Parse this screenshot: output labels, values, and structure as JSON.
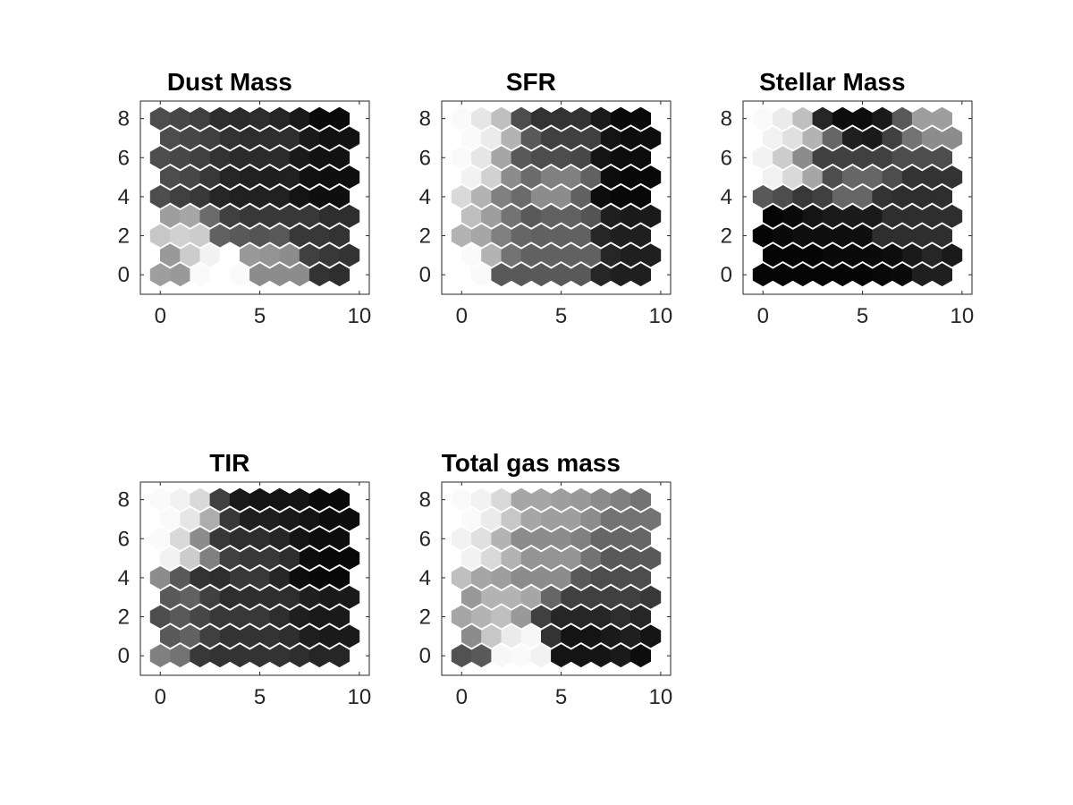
{
  "chart_data": [
    {
      "type": "heatmap",
      "title": "Dust Mass",
      "xlabel": "",
      "ylabel": "",
      "xlim": [
        -1,
        10.5
      ],
      "ylim": [
        -1,
        8.9
      ],
      "xticks": [
        0,
        5,
        10
      ],
      "yticks": [
        0,
        2,
        4,
        6,
        8
      ],
      "grid": false,
      "layout": "hexagonal",
      "x": [
        0,
        1,
        2,
        3,
        4,
        5,
        6,
        7,
        8,
        9
      ],
      "y": [
        0,
        1,
        2,
        3,
        4,
        5,
        6,
        7,
        8
      ],
      "values": [
        [
          0.62,
          0.6,
          0.98,
          1.0,
          0.98,
          0.55,
          0.55,
          0.55,
          0.2,
          0.18
        ],
        [
          0.6,
          0.8,
          0.95,
          1.0,
          0.6,
          0.58,
          0.55,
          0.25,
          0.22,
          0.2
        ],
        [
          0.78,
          0.82,
          0.8,
          0.38,
          0.35,
          0.33,
          0.35,
          0.22,
          0.22,
          0.2
        ],
        [
          0.62,
          0.65,
          0.42,
          0.25,
          0.22,
          0.22,
          0.22,
          0.22,
          0.18,
          0.18
        ],
        [
          0.3,
          0.25,
          0.22,
          0.15,
          0.13,
          0.13,
          0.13,
          0.08,
          0.06,
          0.06
        ],
        [
          0.3,
          0.28,
          0.22,
          0.15,
          0.13,
          0.12,
          0.13,
          0.07,
          0.06,
          0.06
        ],
        [
          0.3,
          0.28,
          0.25,
          0.2,
          0.17,
          0.17,
          0.17,
          0.1,
          0.07,
          0.07
        ],
        [
          0.3,
          0.28,
          0.25,
          0.2,
          0.18,
          0.18,
          0.18,
          0.1,
          0.07,
          0.07
        ],
        [
          0.3,
          0.28,
          0.25,
          0.18,
          0.17,
          0.18,
          0.15,
          0.1,
          0.04,
          0.04
        ]
      ]
    },
    {
      "type": "heatmap",
      "title": "SFR",
      "xlabel": "",
      "ylabel": "",
      "xlim": [
        -1,
        10.5
      ],
      "ylim": [
        -1,
        8.9
      ],
      "xticks": [
        0,
        5,
        10
      ],
      "yticks": [
        0,
        2,
        4,
        6,
        8
      ],
      "grid": false,
      "layout": "hexagonal",
      "x": [
        0,
        1,
        2,
        3,
        4,
        5,
        6,
        7,
        8,
        9
      ],
      "y": [
        0,
        1,
        2,
        3,
        4,
        5,
        6,
        7,
        8
      ],
      "values": [
        [
          1.0,
          0.98,
          0.35,
          0.35,
          0.35,
          0.35,
          0.35,
          0.15,
          0.12,
          0.12
        ],
        [
          0.98,
          0.7,
          0.45,
          0.38,
          0.38,
          0.38,
          0.38,
          0.15,
          0.12,
          0.12
        ],
        [
          0.7,
          0.65,
          0.5,
          0.4,
          0.38,
          0.38,
          0.38,
          0.15,
          0.12,
          0.12
        ],
        [
          0.75,
          0.62,
          0.45,
          0.35,
          0.38,
          0.38,
          0.33,
          0.12,
          0.1,
          0.1
        ],
        [
          0.85,
          0.7,
          0.5,
          0.42,
          0.55,
          0.55,
          0.38,
          0.05,
          0.03,
          0.03
        ],
        [
          0.95,
          0.82,
          0.55,
          0.42,
          0.5,
          0.5,
          0.38,
          0.05,
          0.03,
          0.03
        ],
        [
          0.98,
          0.9,
          0.65,
          0.35,
          0.3,
          0.3,
          0.28,
          0.08,
          0.05,
          0.05
        ],
        [
          0.98,
          0.92,
          0.7,
          0.35,
          0.25,
          0.25,
          0.25,
          0.08,
          0.05,
          0.05
        ],
        [
          0.98,
          0.9,
          0.75,
          0.3,
          0.2,
          0.2,
          0.2,
          0.1,
          0.04,
          0.04
        ]
      ]
    },
    {
      "type": "heatmap",
      "title": "Stellar Mass",
      "xlabel": "",
      "ylabel": "",
      "xlim": [
        -1,
        10.5
      ],
      "ylim": [
        -1,
        8.9
      ],
      "xticks": [
        0,
        5,
        10
      ],
      "yticks": [
        0,
        2,
        4,
        6,
        8
      ],
      "grid": false,
      "layout": "hexagonal",
      "x": [
        0,
        1,
        2,
        3,
        4,
        5,
        6,
        7,
        8,
        9
      ],
      "y": [
        0,
        1,
        2,
        3,
        4,
        5,
        6,
        7,
        8
      ],
      "values": [
        [
          0.02,
          0.02,
          0.02,
          0.02,
          0.02,
          0.02,
          0.03,
          0.04,
          0.12,
          0.12
        ],
        [
          0.02,
          0.02,
          0.02,
          0.04,
          0.04,
          0.04,
          0.05,
          0.1,
          0.15,
          0.1
        ],
        [
          0.02,
          0.04,
          0.06,
          0.06,
          0.06,
          0.06,
          0.18,
          0.18,
          0.18,
          0.18
        ],
        [
          0.02,
          0.04,
          0.08,
          0.1,
          0.1,
          0.1,
          0.18,
          0.18,
          0.18,
          0.18
        ],
        [
          0.35,
          0.3,
          0.22,
          0.25,
          0.4,
          0.4,
          0.2,
          0.18,
          0.18,
          0.18
        ],
        [
          0.95,
          0.85,
          0.65,
          0.3,
          0.4,
          0.4,
          0.3,
          0.2,
          0.2,
          0.2
        ],
        [
          0.95,
          0.8,
          0.55,
          0.25,
          0.25,
          0.25,
          0.25,
          0.3,
          0.3,
          0.3
        ],
        [
          0.95,
          0.88,
          0.7,
          0.4,
          0.12,
          0.1,
          0.25,
          0.45,
          0.55,
          0.55
        ],
        [
          0.98,
          0.92,
          0.75,
          0.15,
          0.05,
          0.05,
          0.1,
          0.35,
          0.62,
          0.62
        ]
      ]
    },
    {
      "type": "heatmap",
      "title": "TIR",
      "xlabel": "",
      "ylabel": "",
      "xlim": [
        -1,
        10.5
      ],
      "ylim": [
        -1,
        8.9
      ],
      "xticks": [
        0,
        5,
        10
      ],
      "yticks": [
        0,
        2,
        4,
        6,
        8
      ],
      "grid": false,
      "layout": "hexagonal",
      "x": [
        0,
        1,
        2,
        3,
        4,
        5,
        6,
        7,
        8,
        9
      ],
      "y": [
        0,
        1,
        2,
        3,
        4,
        5,
        6,
        7,
        8
      ],
      "values": [
        [
          0.5,
          0.45,
          0.22,
          0.2,
          0.2,
          0.2,
          0.2,
          0.18,
          0.15,
          0.15
        ],
        [
          0.35,
          0.38,
          0.25,
          0.2,
          0.2,
          0.2,
          0.18,
          0.12,
          0.1,
          0.1
        ],
        [
          0.3,
          0.35,
          0.28,
          0.22,
          0.22,
          0.22,
          0.18,
          0.12,
          0.1,
          0.1
        ],
        [
          0.35,
          0.38,
          0.25,
          0.18,
          0.18,
          0.18,
          0.18,
          0.12,
          0.1,
          0.1
        ],
        [
          0.55,
          0.35,
          0.2,
          0.18,
          0.22,
          0.22,
          0.15,
          0.05,
          0.03,
          0.03
        ],
        [
          0.95,
          0.8,
          0.5,
          0.25,
          0.22,
          0.22,
          0.18,
          0.05,
          0.03,
          0.03
        ],
        [
          0.98,
          0.85,
          0.55,
          0.22,
          0.18,
          0.18,
          0.15,
          0.08,
          0.05,
          0.05
        ],
        [
          0.98,
          0.9,
          0.68,
          0.22,
          0.12,
          0.12,
          0.1,
          0.08,
          0.05,
          0.05
        ],
        [
          0.98,
          0.95,
          0.85,
          0.25,
          0.1,
          0.08,
          0.08,
          0.08,
          0.04,
          0.04
        ]
      ]
    },
    {
      "type": "heatmap",
      "title": "Total gas mass",
      "xlabel": "",
      "ylabel": "",
      "xlim": [
        -1,
        10.5
      ],
      "ylim": [
        -1,
        8.9
      ],
      "xticks": [
        0,
        5,
        10
      ],
      "yticks": [
        0,
        2,
        4,
        6,
        8
      ],
      "grid": false,
      "layout": "hexagonal",
      "x": [
        0,
        1,
        2,
        3,
        4,
        5,
        6,
        7,
        8,
        9
      ],
      "y": [
        0,
        1,
        2,
        3,
        4,
        5,
        6,
        7,
        8
      ],
      "values": [
        [
          0.32,
          0.35,
          0.97,
          0.98,
          0.95,
          0.08,
          0.08,
          0.08,
          0.1,
          0.05
        ],
        [
          0.55,
          0.78,
          0.92,
          0.97,
          0.2,
          0.08,
          0.08,
          0.1,
          0.12,
          0.08
        ],
        [
          0.65,
          0.7,
          0.75,
          0.6,
          0.25,
          0.15,
          0.15,
          0.15,
          0.18,
          0.15
        ],
        [
          0.6,
          0.7,
          0.7,
          0.65,
          0.4,
          0.25,
          0.25,
          0.25,
          0.25,
          0.22
        ],
        [
          0.75,
          0.65,
          0.62,
          0.55,
          0.55,
          0.55,
          0.35,
          0.3,
          0.3,
          0.3
        ],
        [
          0.95,
          0.85,
          0.7,
          0.58,
          0.58,
          0.58,
          0.45,
          0.35,
          0.35,
          0.35
        ],
        [
          0.95,
          0.88,
          0.7,
          0.55,
          0.55,
          0.55,
          0.5,
          0.4,
          0.4,
          0.4
        ],
        [
          0.98,
          0.92,
          0.78,
          0.65,
          0.62,
          0.62,
          0.55,
          0.45,
          0.45,
          0.45
        ],
        [
          0.98,
          0.95,
          0.85,
          0.65,
          0.65,
          0.62,
          0.6,
          0.55,
          0.5,
          0.45
        ]
      ]
    }
  ]
}
